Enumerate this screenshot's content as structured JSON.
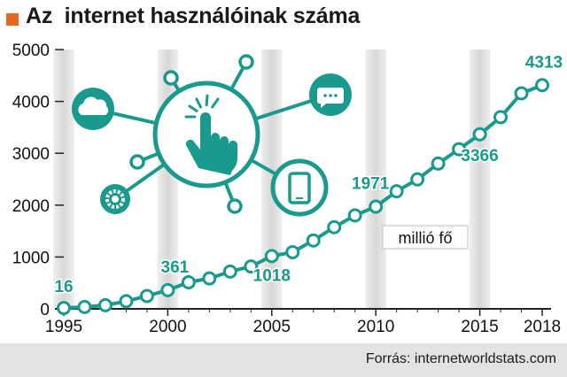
{
  "title": "Az  internet használóinak száma",
  "source": "Forrás: internetworldstats.com",
  "colors": {
    "accent": "#e8671f",
    "series": "#1a9a8c",
    "band": "#d7d7d7",
    "axis": "#222222"
  },
  "chart_data": {
    "type": "line",
    "title": "Az  internet használóinak száma",
    "unit_label": "millió fő",
    "xlim": [
      1995,
      2018
    ],
    "ylim": [
      0,
      5000
    ],
    "x_ticks": [
      1995,
      2000,
      2005,
      2010,
      2015,
      2018
    ],
    "x_tick_labels": [
      "1995",
      "2000",
      "2005",
      "2010",
      "2015",
      "2018"
    ],
    "y_ticks": [
      0,
      1000,
      2000,
      3000,
      4000,
      5000
    ],
    "y_tick_labels": [
      "0",
      "1000",
      "2000",
      "3000",
      "4000",
      "5000"
    ],
    "highlight_bands": [
      1995,
      2000,
      2005,
      2010,
      2015
    ],
    "grid": false,
    "series": [
      {
        "x": [
          1995,
          1996,
          1997,
          1998,
          1999,
          2000,
          2001,
          2002,
          2003,
          2004,
          2005,
          2006,
          2007,
          2008,
          2009,
          2010,
          2011,
          2012,
          2013,
          2014,
          2015,
          2016,
          2017,
          2018
        ],
        "y": [
          16,
          36,
          70,
          147,
          248,
          361,
          513,
          587,
          719,
          817,
          1018,
          1093,
          1319,
          1574,
          1802,
          1971,
          2267,
          2497,
          2802,
          3079,
          3366,
          3696,
          4156,
          4313
        ]
      }
    ],
    "data_labels": [
      {
        "x": 1995,
        "text": "16"
      },
      {
        "x": 2000,
        "text": "361"
      },
      {
        "x": 2005,
        "text": "1018"
      },
      {
        "x": 2010,
        "text": "1971"
      },
      {
        "x": 2015,
        "text": "3366"
      },
      {
        "x": 2018,
        "text": "4313"
      }
    ]
  },
  "illustration": {
    "center_icon": "touch-hand-icon",
    "node_icons": [
      "cloud-icon",
      "chat-bubble-icon",
      "gear-icon",
      "smartphone-icon"
    ]
  }
}
